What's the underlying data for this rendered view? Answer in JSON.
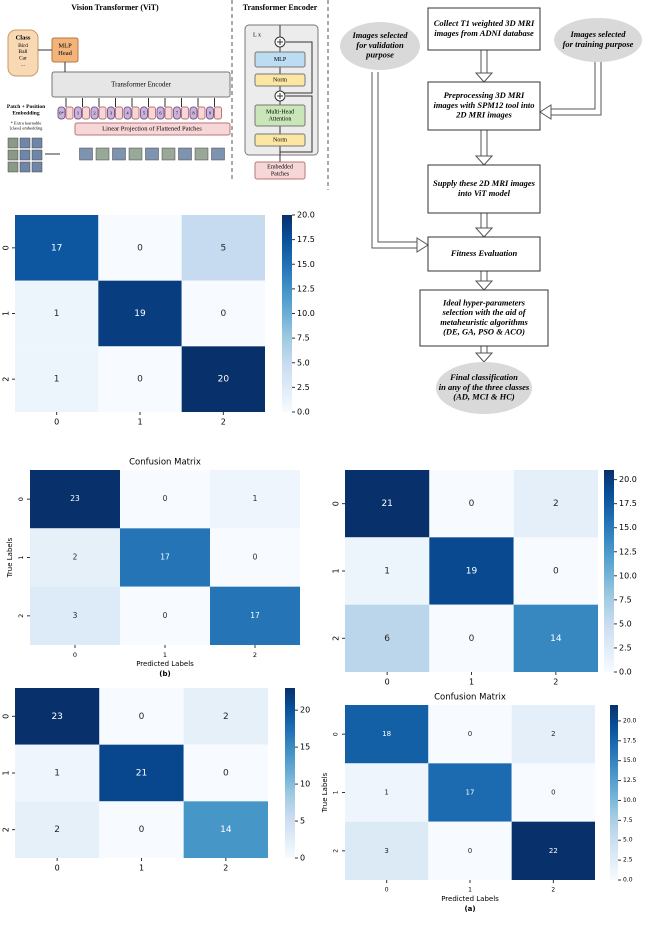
{
  "vit_diagram": {
    "title": "Vision Transformer (ViT)",
    "class_head": {
      "title": "Class",
      "items": [
        "Bird",
        "Ball",
        "Car",
        "..."
      ]
    },
    "mlp_head": [
      "MLP",
      "Head"
    ],
    "encoder": "Transformer Encoder",
    "embedding_label": [
      "Patch + Position",
      "Embedding"
    ],
    "embedding_note": [
      "* Extra learnable",
      "[class] embedding"
    ],
    "tokens": [
      "0*",
      "1",
      "2",
      "3",
      "4",
      "5",
      "6",
      "7",
      "8",
      "9"
    ],
    "projection": "Linear Projection of Flattened Patches"
  },
  "encoder_diagram": {
    "title": "Transformer Encoder",
    "repeat": "L x",
    "blocks": [
      [
        "MLP"
      ],
      [
        "Norm"
      ],
      [
        "Multi-Head",
        "Attention"
      ],
      [
        "Norm"
      ]
    ],
    "input": [
      "Embedded",
      "Patches"
    ]
  },
  "flowchart": {
    "nodes": [
      {
        "lines": [
          "Collect T1 weighted 3D MRI",
          "images from ADNI database"
        ]
      },
      {
        "lines": [
          "Images selected",
          "for validation",
          "purpose"
        ]
      },
      {
        "lines": [
          "Images selected",
          "for training purpose"
        ]
      },
      {
        "lines": [
          "Preprocessing 3D MRI",
          "images with SPM12 tool into",
          "2D MRI images"
        ]
      },
      {
        "lines": [
          "Supply these 2D MRI images",
          "into ViT model"
        ]
      },
      {
        "lines": [
          "Fitness Evaluation"
        ]
      },
      {
        "lines": [
          "Ideal hyper-parameters",
          "selection with the aid of",
          "metaheuristic algorithms",
          "(DE, GA, PSO & ACO)"
        ]
      },
      {
        "lines": [
          "Final classification",
          "in any of the three classes",
          "(AD, MCI & HC)"
        ]
      }
    ]
  },
  "chart_data": [
    {
      "type": "heatmap",
      "x": [
        0,
        1,
        2
      ],
      "y": [
        0,
        1,
        2
      ],
      "values": [
        [
          17,
          0,
          5
        ],
        [
          1,
          19,
          0
        ],
        [
          1,
          0,
          20
        ]
      ],
      "colormap": "Blues",
      "clim": [
        0,
        20
      ],
      "cticks": [
        {
          "value": 0,
          "label": "0.0"
        },
        {
          "value": 2.5,
          "label": "2.5"
        },
        {
          "value": 5,
          "label": "5.0"
        },
        {
          "value": 7.5,
          "label": "7.5"
        },
        {
          "value": 10,
          "label": "10.0"
        },
        {
          "value": 12.5,
          "label": "12.5"
        },
        {
          "value": 15,
          "label": "15.0"
        },
        {
          "value": 17.5,
          "label": "17.5"
        },
        {
          "value": 20,
          "label": "20.0"
        }
      ]
    },
    {
      "type": "heatmap",
      "title": "Confusion Matrix",
      "xlabel": "Predicted Labels",
      "ylabel": "True Labels",
      "caption": "(b)",
      "x": [
        0,
        1,
        2
      ],
      "y": [
        0,
        1,
        2
      ],
      "values": [
        [
          23,
          0,
          1
        ],
        [
          2,
          17,
          0
        ],
        [
          3,
          0,
          17
        ]
      ],
      "colormap": "Blues",
      "clim": [
        0,
        23
      ]
    },
    {
      "type": "heatmap",
      "x": [
        0,
        1,
        2
      ],
      "y": [
        0,
        1,
        2
      ],
      "values": [
        [
          21,
          0,
          2
        ],
        [
          1,
          19,
          0
        ],
        [
          6,
          0,
          14
        ]
      ],
      "colormap": "Blues",
      "clim": [
        0,
        21
      ],
      "cticks": [
        {
          "value": 0,
          "label": "0.0"
        },
        {
          "value": 2.5,
          "label": "2.5"
        },
        {
          "value": 5,
          "label": "5.0"
        },
        {
          "value": 7.5,
          "label": "7.5"
        },
        {
          "value": 10,
          "label": "10.0"
        },
        {
          "value": 12.5,
          "label": "12.5"
        },
        {
          "value": 15,
          "label": "15.0"
        },
        {
          "value": 17.5,
          "label": "17.5"
        },
        {
          "value": 20,
          "label": "20.0"
        }
      ]
    },
    {
      "type": "heatmap",
      "x": [
        0,
        1,
        2
      ],
      "y": [
        0,
        1,
        2
      ],
      "values": [
        [
          23,
          0,
          2
        ],
        [
          1,
          21,
          0
        ],
        [
          2,
          0,
          14
        ]
      ],
      "colormap": "Blues",
      "clim": [
        0,
        23
      ],
      "cticks": [
        0,
        5,
        10,
        15,
        20
      ]
    },
    {
      "type": "heatmap",
      "title": "Confusion Matrix",
      "xlabel": "Predicted Labels",
      "ylabel": "True Labels",
      "caption": "(a)",
      "x": [
        0,
        1,
        2
      ],
      "y": [
        0,
        1,
        2
      ],
      "values": [
        [
          18,
          0,
          2
        ],
        [
          1,
          17,
          0
        ],
        [
          3,
          0,
          22
        ]
      ],
      "colormap": "Blues",
      "clim": [
        0,
        22
      ],
      "cticks": [
        {
          "value": 0,
          "label": "0.0"
        },
        {
          "value": 2.5,
          "label": "2.5"
        },
        {
          "value": 5,
          "label": "5.0"
        },
        {
          "value": 7.5,
          "label": "7.5"
        },
        {
          "value": 10,
          "label": "10.0"
        },
        {
          "value": 12.5,
          "label": "12.5"
        },
        {
          "value": 15,
          "label": "15.0"
        },
        {
          "value": 17.5,
          "label": "17.5"
        },
        {
          "value": 20,
          "label": "20.0"
        }
      ]
    }
  ]
}
